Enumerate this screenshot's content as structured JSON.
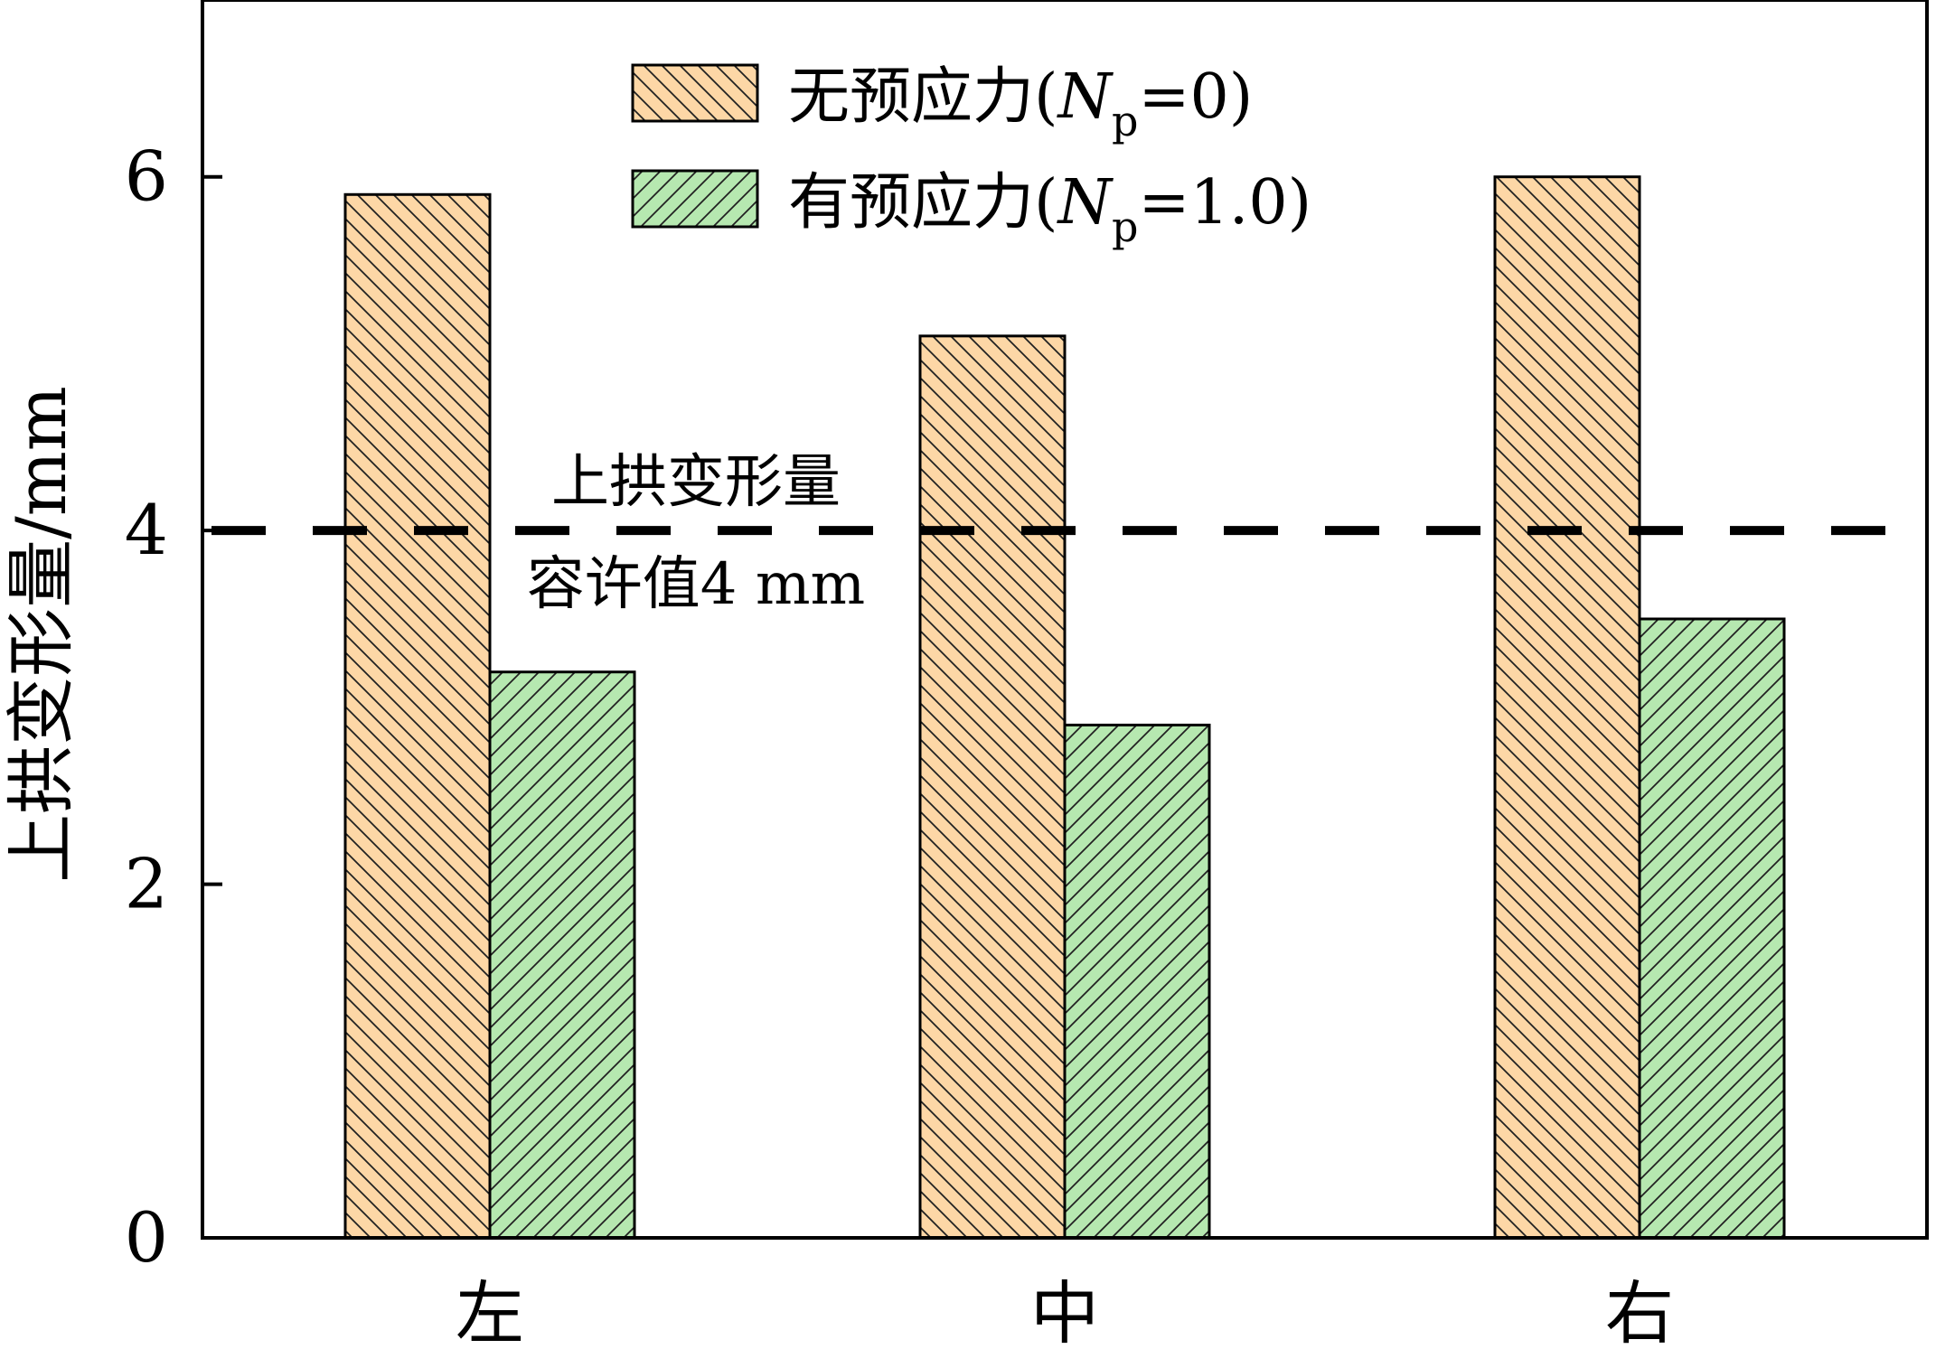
{
  "chart_data": {
    "type": "bar",
    "categories": [
      "左",
      "中",
      "右"
    ],
    "series": [
      {
        "name": "无预应力(Np=0)",
        "values": [
          5.9,
          5.1,
          6.0
        ],
        "color": "#fdd7a6",
        "hatch": "backslash"
      },
      {
        "name": "有预应力(Np=1.0)",
        "values": [
          3.2,
          2.9,
          3.5
        ],
        "color": "#b6e8b0",
        "hatch": "slash"
      }
    ],
    "legend": [
      {
        "prefix": "无预应力(",
        "var": "N",
        "sub": "p",
        "suffix": "=0)"
      },
      {
        "prefix": "有预应力(",
        "var": "N",
        "sub": "p",
        "suffix": "=1.0)"
      }
    ],
    "legend_position": "top-center",
    "ylabel": "上拱变形量/mm",
    "xlabel": "",
    "ylim": [
      0,
      7
    ],
    "yticks": [
      0,
      2,
      4,
      6
    ],
    "grid": false,
    "reference_line": {
      "y": 4,
      "style": "dashed",
      "color": "#000000",
      "label_line1": "上拱变形量",
      "label_line2": "容许值4 mm"
    }
  }
}
